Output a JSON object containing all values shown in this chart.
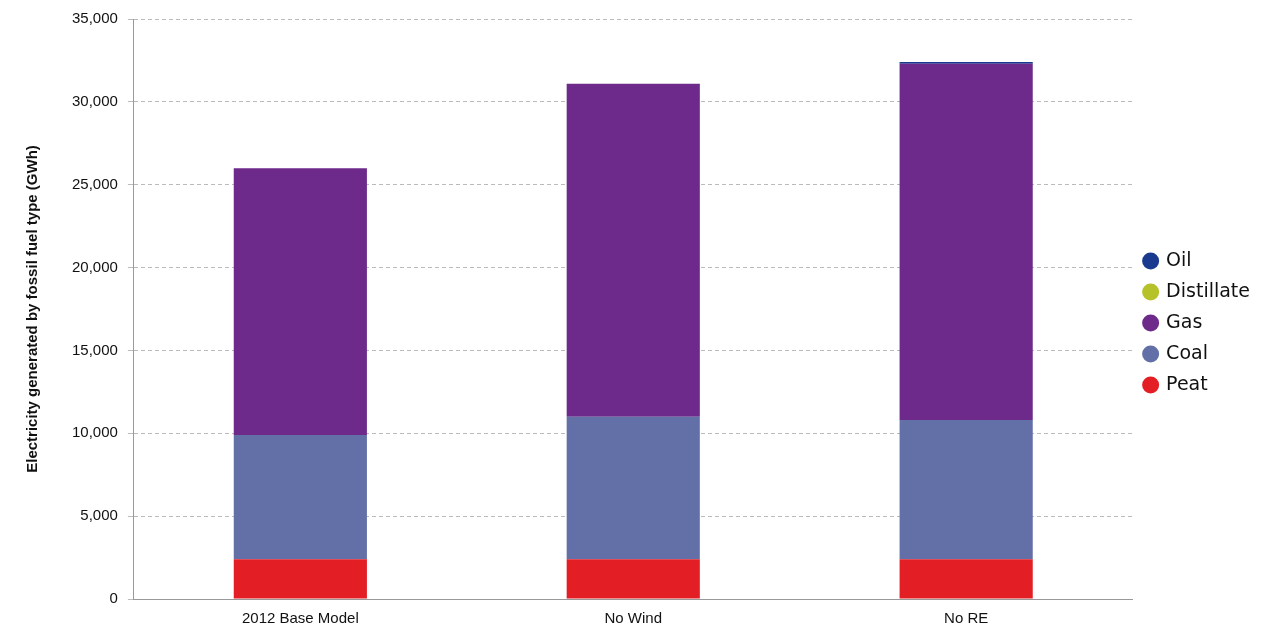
{
  "chart_data": {
    "type": "bar",
    "stacked": true,
    "ylabel": "Electricity generated by fossil fuel type (GWh)",
    "categories": [
      "2012 Base Model",
      "No Wind",
      "No RE"
    ],
    "series": [
      {
        "name": "Peat",
        "color": "#e31e24",
        "values": [
          2400,
          2400,
          2400
        ]
      },
      {
        "name": "Coal",
        "color": "#6370a8",
        "values": [
          7500,
          8600,
          8400
        ]
      },
      {
        "name": "Gas",
        "color": "#6d2a8a",
        "values": [
          16100,
          20100,
          21500
        ]
      },
      {
        "name": "Distillate",
        "color": "#b5c22a",
        "values": [
          0,
          0,
          0
        ]
      },
      {
        "name": "Oil",
        "color": "#1a3a8f",
        "values": [
          0,
          0,
          100
        ]
      }
    ],
    "ylim": [
      0,
      35000
    ],
    "yticks": [
      0,
      {
        "value": 5000,
        "label": "5,000"
      },
      {
        "value": 10000,
        "label": "10,000"
      },
      {
        "value": 15000,
        "label": "15,000"
      },
      {
        "value": 20000,
        "label": "20,000"
      },
      {
        "value": 25000,
        "label": "25,000"
      },
      {
        "value": 30000,
        "label": "30,000"
      },
      {
        "value": 35000,
        "label": "35,000"
      }
    ],
    "grid": "y",
    "legend": "right"
  }
}
